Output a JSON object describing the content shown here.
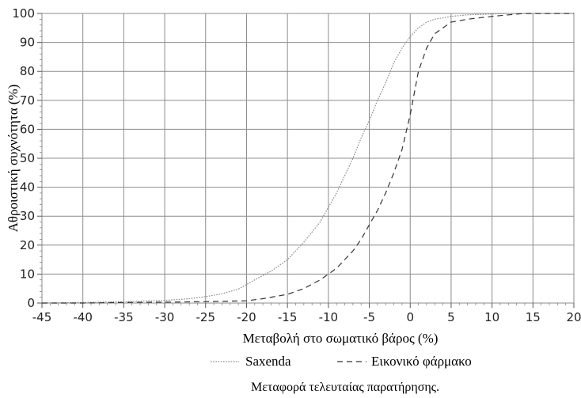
{
  "chart_data": {
    "type": "line",
    "xlabel": "Μεταβολή στο σωματικό βάρος (%)",
    "ylabel": "Αθροιστική συχνότητα (%)",
    "xlim": [
      -45,
      20
    ],
    "ylim": [
      0,
      100
    ],
    "xticks": [
      -45,
      -40,
      -35,
      -30,
      -25,
      -20,
      -15,
      -10,
      -5,
      0,
      5,
      10,
      15,
      20
    ],
    "yticks": [
      0,
      10,
      20,
      30,
      40,
      50,
      60,
      70,
      80,
      90,
      100
    ],
    "grid": true,
    "legend_placement": "bottom-center",
    "footnote": "Μεταφορά τελευταίας παρατήρησης.",
    "series": [
      {
        "name": "Saxenda",
        "style": "dotted",
        "color": "#8a8a8a",
        "x": [
          -45,
          -40,
          -35,
          -30,
          -27,
          -25,
          -23,
          -21,
          -19,
          -17,
          -15,
          -13,
          -11,
          -10,
          -9,
          -8,
          -7,
          -6,
          -5,
          -4,
          -3,
          -2,
          -1,
          0,
          1,
          2,
          3,
          5,
          7,
          10,
          12,
          13,
          15,
          20
        ],
        "y": [
          0,
          0.2,
          0.5,
          0.9,
          1.5,
          2.2,
          3.2,
          4.8,
          8,
          11,
          15,
          21,
          28,
          33,
          38,
          44,
          50,
          57,
          63,
          70,
          76,
          83,
          88,
          92,
          95,
          97,
          98,
          99,
          99.5,
          99.8,
          100,
          100,
          100,
          100
        ]
      },
      {
        "name": "Εικονικό φάρμακο",
        "style": "dashed",
        "color": "#333333",
        "x": [
          -45,
          -40,
          -35,
          -30,
          -25,
          -20,
          -18,
          -15,
          -13,
          -11,
          -9,
          -8,
          -7,
          -6,
          -5,
          -4,
          -3,
          -2,
          -1,
          0,
          1,
          2,
          3,
          4,
          5,
          7,
          10,
          12,
          14,
          20
        ],
        "y": [
          0,
          0,
          0.2,
          0.3,
          0.5,
          0.8,
          1.5,
          3,
          5,
          8,
          12,
          15,
          18,
          22,
          27,
          32,
          38,
          45,
          53,
          65,
          80,
          88,
          93,
          95,
          97,
          98,
          99,
          99.5,
          100,
          100
        ]
      }
    ]
  }
}
